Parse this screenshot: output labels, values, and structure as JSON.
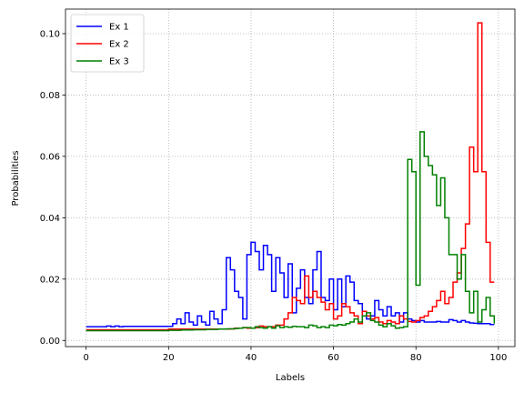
{
  "chart_data": {
    "type": "line",
    "drawstyle": "steps-post",
    "xlabel": "Labels",
    "ylabel": "Probabilities",
    "xlim": [
      -5,
      104
    ],
    "ylim": [
      -0.002,
      0.108
    ],
    "xticks": [
      0,
      20,
      40,
      60,
      80,
      100
    ],
    "yticks": [
      0.0,
      0.02,
      0.04,
      0.06,
      0.08,
      0.1
    ],
    "xtick_labels": [
      "0",
      "20",
      "40",
      "60",
      "80",
      "100"
    ],
    "ytick_labels": [
      "0.00",
      "0.02",
      "0.04",
      "0.06",
      "0.08",
      "0.10"
    ],
    "grid": true,
    "legend_position": "top-left",
    "x": [
      0,
      1,
      2,
      3,
      4,
      5,
      6,
      7,
      8,
      9,
      10,
      11,
      12,
      13,
      14,
      15,
      16,
      17,
      18,
      19,
      20,
      21,
      22,
      23,
      24,
      25,
      26,
      27,
      28,
      29,
      30,
      31,
      32,
      33,
      34,
      35,
      36,
      37,
      38,
      39,
      40,
      41,
      42,
      43,
      44,
      45,
      46,
      47,
      48,
      49,
      50,
      51,
      52,
      53,
      54,
      55,
      56,
      57,
      58,
      59,
      60,
      61,
      62,
      63,
      64,
      65,
      66,
      67,
      68,
      69,
      70,
      71,
      72,
      73,
      74,
      75,
      76,
      77,
      78,
      79,
      80,
      81,
      82,
      83,
      84,
      85,
      86,
      87,
      88,
      89,
      90,
      91,
      92,
      93,
      94,
      95,
      96,
      97,
      98,
      99
    ],
    "series": [
      {
        "name": "Ex 1",
        "color": "#0000ff",
        "values": [
          0.0045,
          0.0045,
          0.0045,
          0.0045,
          0.0045,
          0.0047,
          0.0045,
          0.0047,
          0.0045,
          0.0046,
          0.0046,
          0.0046,
          0.0046,
          0.0046,
          0.0046,
          0.0046,
          0.0046,
          0.0046,
          0.0046,
          0.0046,
          0.0046,
          0.0055,
          0.007,
          0.0055,
          0.009,
          0.006,
          0.005,
          0.008,
          0.006,
          0.005,
          0.0095,
          0.007,
          0.0055,
          0.01,
          0.027,
          0.023,
          0.016,
          0.014,
          0.007,
          0.028,
          0.032,
          0.029,
          0.023,
          0.031,
          0.028,
          0.016,
          0.027,
          0.022,
          0.014,
          0.025,
          0.009,
          0.017,
          0.023,
          0.014,
          0.012,
          0.023,
          0.029,
          0.014,
          0.013,
          0.02,
          0.01,
          0.02,
          0.011,
          0.021,
          0.019,
          0.013,
          0.012,
          0.008,
          0.007,
          0.008,
          0.013,
          0.01,
          0.008,
          0.011,
          0.008,
          0.009,
          0.006,
          0.009,
          0.007,
          0.0065,
          0.006,
          0.0065,
          0.006,
          0.006,
          0.006,
          0.0062,
          0.006,
          0.006,
          0.0068,
          0.0065,
          0.006,
          0.0065,
          0.006,
          0.0057,
          0.0056,
          0.0055,
          0.0055,
          0.0055,
          0.0052,
          0.0052
        ]
      },
      {
        "name": "Ex 2",
        "color": "#ff0000",
        "values": [
          0.0035,
          0.0035,
          0.0035,
          0.0035,
          0.0035,
          0.0035,
          0.0035,
          0.0035,
          0.0035,
          0.0035,
          0.0035,
          0.0035,
          0.0035,
          0.0035,
          0.0035,
          0.0035,
          0.0035,
          0.0035,
          0.0035,
          0.0035,
          0.0037,
          0.0037,
          0.0037,
          0.0037,
          0.0037,
          0.0037,
          0.0037,
          0.0037,
          0.0037,
          0.0037,
          0.0037,
          0.0037,
          0.0037,
          0.0037,
          0.0037,
          0.0038,
          0.004,
          0.004,
          0.0042,
          0.004,
          0.004,
          0.0042,
          0.0047,
          0.0045,
          0.0045,
          0.0045,
          0.005,
          0.005,
          0.007,
          0.009,
          0.014,
          0.013,
          0.012,
          0.021,
          0.014,
          0.016,
          0.014,
          0.0125,
          0.01,
          0.012,
          0.007,
          0.008,
          0.012,
          0.011,
          0.009,
          0.008,
          0.0055,
          0.0095,
          0.008,
          0.007,
          0.0075,
          0.006,
          0.0055,
          0.0065,
          0.006,
          0.0055,
          0.008,
          0.007,
          0.0062,
          0.006,
          0.0065,
          0.0075,
          0.008,
          0.0095,
          0.011,
          0.013,
          0.016,
          0.012,
          0.014,
          0.019,
          0.022,
          0.03,
          0.038,
          0.063,
          0.055,
          0.1035,
          0.055,
          0.032,
          0.019,
          0.019
        ]
      },
      {
        "name": "Ex 3",
        "color": "#008000",
        "values": [
          0.0032,
          0.0032,
          0.0032,
          0.0032,
          0.0032,
          0.0032,
          0.0032,
          0.0032,
          0.0032,
          0.0032,
          0.0032,
          0.0032,
          0.0032,
          0.0032,
          0.0032,
          0.0032,
          0.0032,
          0.0032,
          0.0032,
          0.0032,
          0.0033,
          0.0033,
          0.0033,
          0.0034,
          0.0034,
          0.0034,
          0.0035,
          0.0035,
          0.0035,
          0.0036,
          0.0036,
          0.0036,
          0.0037,
          0.0037,
          0.0038,
          0.0038,
          0.0039,
          0.004,
          0.0042,
          0.0042,
          0.004,
          0.0045,
          0.0042,
          0.004,
          0.0045,
          0.004,
          0.0048,
          0.0042,
          0.0045,
          0.0043,
          0.0046,
          0.0045,
          0.0045,
          0.0042,
          0.005,
          0.0048,
          0.0042,
          0.0045,
          0.0042,
          0.005,
          0.0048,
          0.0052,
          0.005,
          0.0055,
          0.006,
          0.007,
          0.006,
          0.008,
          0.009,
          0.0065,
          0.006,
          0.005,
          0.0045,
          0.0055,
          0.0048,
          0.004,
          0.0042,
          0.0045,
          0.059,
          0.055,
          0.018,
          0.068,
          0.06,
          0.057,
          0.054,
          0.044,
          0.053,
          0.04,
          0.028,
          0.028,
          0.02,
          0.028,
          0.016,
          0.009,
          0.016,
          0.006,
          0.01,
          0.014,
          0.008,
          0.0055
        ]
      }
    ]
  }
}
